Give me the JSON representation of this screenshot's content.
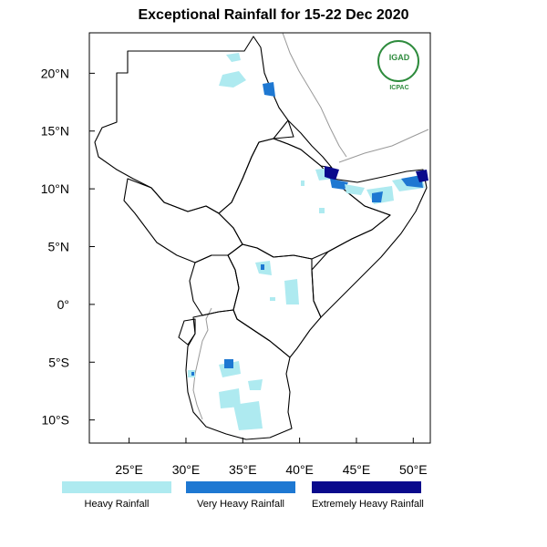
{
  "title": "Exceptional Rainfall for 15-22 Dec 2020",
  "map": {
    "lon_range": [
      21.5,
      51.5
    ],
    "lat_range": [
      -12,
      23.5
    ],
    "x_ticks": [
      {
        "lon": 25,
        "label": "25°E"
      },
      {
        "lon": 30,
        "label": "30°E"
      },
      {
        "lon": 35,
        "label": "35°E"
      },
      {
        "lon": 40,
        "label": "40°E"
      },
      {
        "lon": 45,
        "label": "45°E"
      },
      {
        "lon": 50,
        "label": "50°E"
      }
    ],
    "y_ticks": [
      {
        "lat": 20,
        "label": "20°N"
      },
      {
        "lat": 15,
        "label": "15°N"
      },
      {
        "lat": 10,
        "label": "10°N"
      },
      {
        "lat": 5,
        "label": "5°N"
      },
      {
        "lat": 0,
        "label": "0°"
      },
      {
        "lat": -5,
        "label": "5°S"
      },
      {
        "lat": -10,
        "label": "10°S"
      }
    ]
  },
  "legend": {
    "items": [
      {
        "label": "Heavy Rainfall",
        "color": "#aeeaf0"
      },
      {
        "label": "Very Heavy Rainfall",
        "color": "#1e78d2"
      },
      {
        "label": "Extremely Heavy Rainfall",
        "color": "#0a0a8c"
      }
    ]
  },
  "logo": {
    "name": "IGAD",
    "sub": "ICPAC",
    "color": "#2e8b3d"
  }
}
